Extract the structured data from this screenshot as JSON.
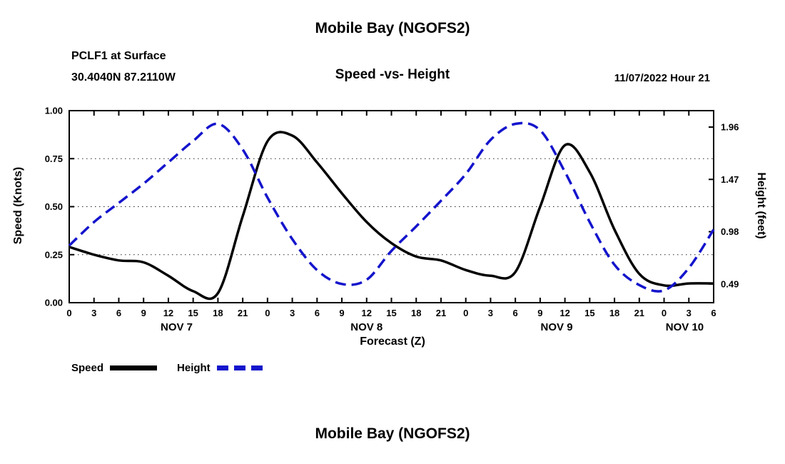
{
  "header": {
    "title": "Mobile Bay (NGOFS2)",
    "station": "PCLF1 at Surface",
    "coords": "30.4040N  87.2110W",
    "subtitle": "Speed -vs- Height",
    "datetime": "11/07/2022 Hour 21"
  },
  "footer": {
    "title": "Mobile Bay (NGOFS2)"
  },
  "chart_data": {
    "type": "line",
    "xlabel": "Forecast (Z)",
    "ylabel_left": "Speed (Knots)",
    "ylabel_right": "Height (feet)",
    "x_hours": [
      0,
      3,
      6,
      9,
      12,
      15,
      18,
      21,
      24,
      27,
      30,
      33,
      36,
      39,
      42,
      45,
      48,
      51,
      54,
      57,
      60,
      63,
      66,
      69,
      72,
      75,
      78
    ],
    "x_tick_labels": [
      "0",
      "3",
      "6",
      "9",
      "12",
      "15",
      "18",
      "21",
      "0",
      "3",
      "6",
      "9",
      "12",
      "15",
      "18",
      "21",
      "0",
      "3",
      "6",
      "9",
      "12",
      "15",
      "18",
      "21",
      "0",
      "3",
      "6"
    ],
    "date_labels": [
      {
        "label": "NOV 7",
        "t": 13
      },
      {
        "label": "NOV 8",
        "t": 36
      },
      {
        "label": "NOV 9",
        "t": 59
      },
      {
        "label": "NOV 10",
        "t": 74.5
      }
    ],
    "ylim_left": [
      0,
      1
    ],
    "yticks_left": [
      0.0,
      0.25,
      0.5,
      0.75,
      1.0
    ],
    "ylim_right": [
      0.315,
      2.114
    ],
    "yticks_right": [
      0.49,
      0.98,
      1.47,
      1.96
    ],
    "grid": "horizontal-dotted",
    "legend_position": "bottom-left",
    "series": [
      {
        "name": "Speed",
        "axis": "left",
        "units": "knots",
        "color": "#000000",
        "style": "solid",
        "values": [
          0.29,
          0.25,
          0.22,
          0.21,
          0.14,
          0.06,
          0.05,
          0.45,
          0.84,
          0.87,
          0.73,
          0.57,
          0.42,
          0.31,
          0.24,
          0.22,
          0.17,
          0.14,
          0.16,
          0.5,
          0.82,
          0.68,
          0.38,
          0.15,
          0.09,
          0.1,
          0.1
        ]
      },
      {
        "name": "Height",
        "axis": "right",
        "units": "feet",
        "color": "#1414cc",
        "style": "dashed",
        "values": [
          0.85,
          1.07,
          1.25,
          1.43,
          1.63,
          1.83,
          1.99,
          1.75,
          1.3,
          0.91,
          0.62,
          0.49,
          0.53,
          0.8,
          1.03,
          1.27,
          1.52,
          1.84,
          1.99,
          1.93,
          1.54,
          1.07,
          0.67,
          0.48,
          0.43,
          0.64,
          1.0
        ]
      }
    ]
  }
}
